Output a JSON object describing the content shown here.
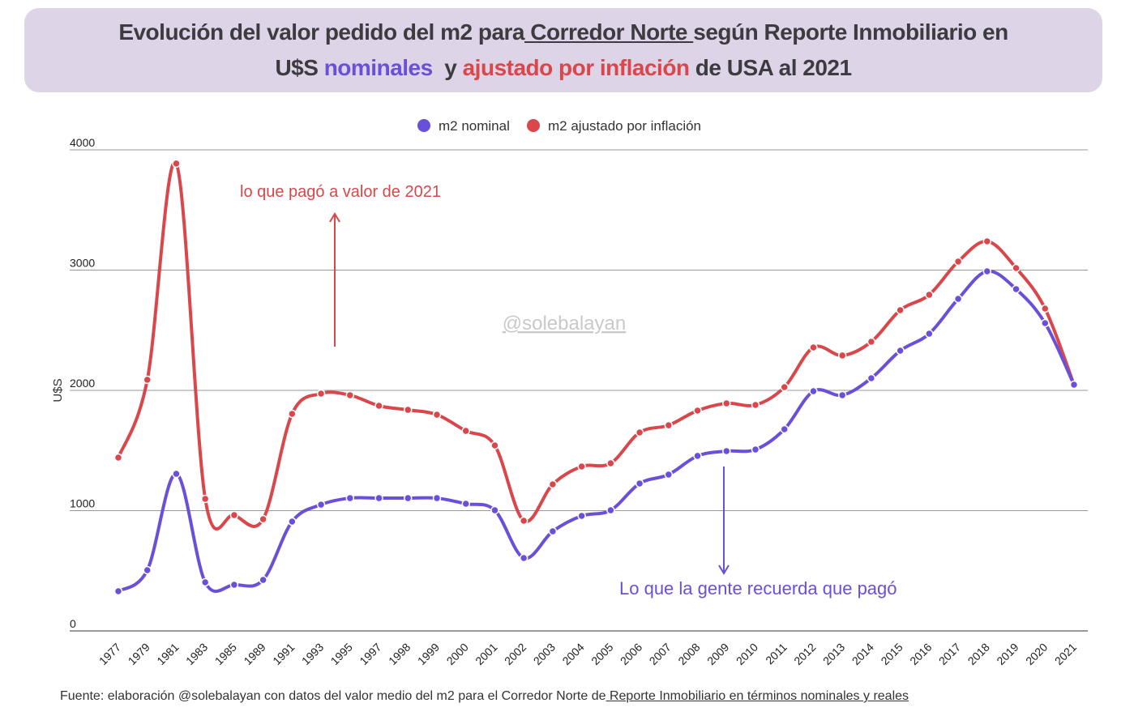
{
  "title": {
    "line1_a": "Evolución del valor pedido del m2 para",
    "line1_link": " Corredor Norte ",
    "line1_b": "según Reporte Inmobiliario en",
    "line2_a": "U$S ",
    "line2_nominal": "nominales",
    "line2_mid": "  y ",
    "line2_inflation": "ajustado por inflación",
    "line2_b": " de USA al 2021"
  },
  "watermark": "@solebalayan",
  "annotations": {
    "inflation": "lo que pagó a valor de 2021",
    "nominal": "Lo que la gente recuerda que pagó"
  },
  "footer": {
    "text": "Fuente: elaboración @solebalayan con datos del valor medio del m2 para el Corredor Norte de",
    "link": " Reporte Inmobiliario en términos nominales y reales"
  },
  "colors": {
    "nominal": "#6a4fd8",
    "inflation": "#d9474b",
    "title_bg": "#ddd4e8"
  },
  "chart_data": {
    "type": "line",
    "title": "Evolución del valor pedido del m2 para Corredor Norte según Reporte Inmobiliario en U$S nominales y ajustado por inflación de USA al 2021",
    "xlabel": "",
    "ylabel": "U$S",
    "ylim": [
      0,
      4000
    ],
    "yticks": [
      "0",
      "1000",
      "2000",
      "3000",
      "4000"
    ],
    "grid": true,
    "legend_position": "top-center",
    "categories": [
      "1977",
      "1979",
      "1981",
      "1983",
      "1985",
      "1989",
      "1991",
      "1993",
      "1995",
      "1997",
      "1998",
      "1999",
      "2000",
      "2001",
      "2002",
      "2003",
      "2004",
      "2005",
      "2006",
      "2007",
      "2008",
      "2009",
      "2010",
      "2011",
      "2012",
      "2013",
      "2014",
      "2015",
      "2016",
      "2017",
      "2018",
      "2019",
      "2020",
      "2021"
    ],
    "series": [
      {
        "name": "m2 nominal",
        "values": [
          330,
          505,
          1306,
          404,
          384,
          424,
          909,
          1050,
          1104,
          1104,
          1104,
          1104,
          1057,
          1003,
          606,
          828,
          956,
          1003,
          1226,
          1300,
          1455,
          1495,
          1508,
          1677,
          1993,
          1960,
          2101,
          2330,
          2471,
          2761,
          2990,
          2842,
          2559,
          2047
        ]
      },
      {
        "name": "m2 ajustado por inflación",
        "values": [
          1441,
          2088,
          3886,
          1098,
          963,
          929,
          1805,
          1973,
          1960,
          1872,
          1838,
          1798,
          1663,
          1542,
          916,
          1219,
          1367,
          1394,
          1650,
          1710,
          1832,
          1892,
          1879,
          2027,
          2357,
          2290,
          2404,
          2667,
          2795,
          3071,
          3239,
          3017,
          2680,
          2047
        ]
      }
    ]
  }
}
